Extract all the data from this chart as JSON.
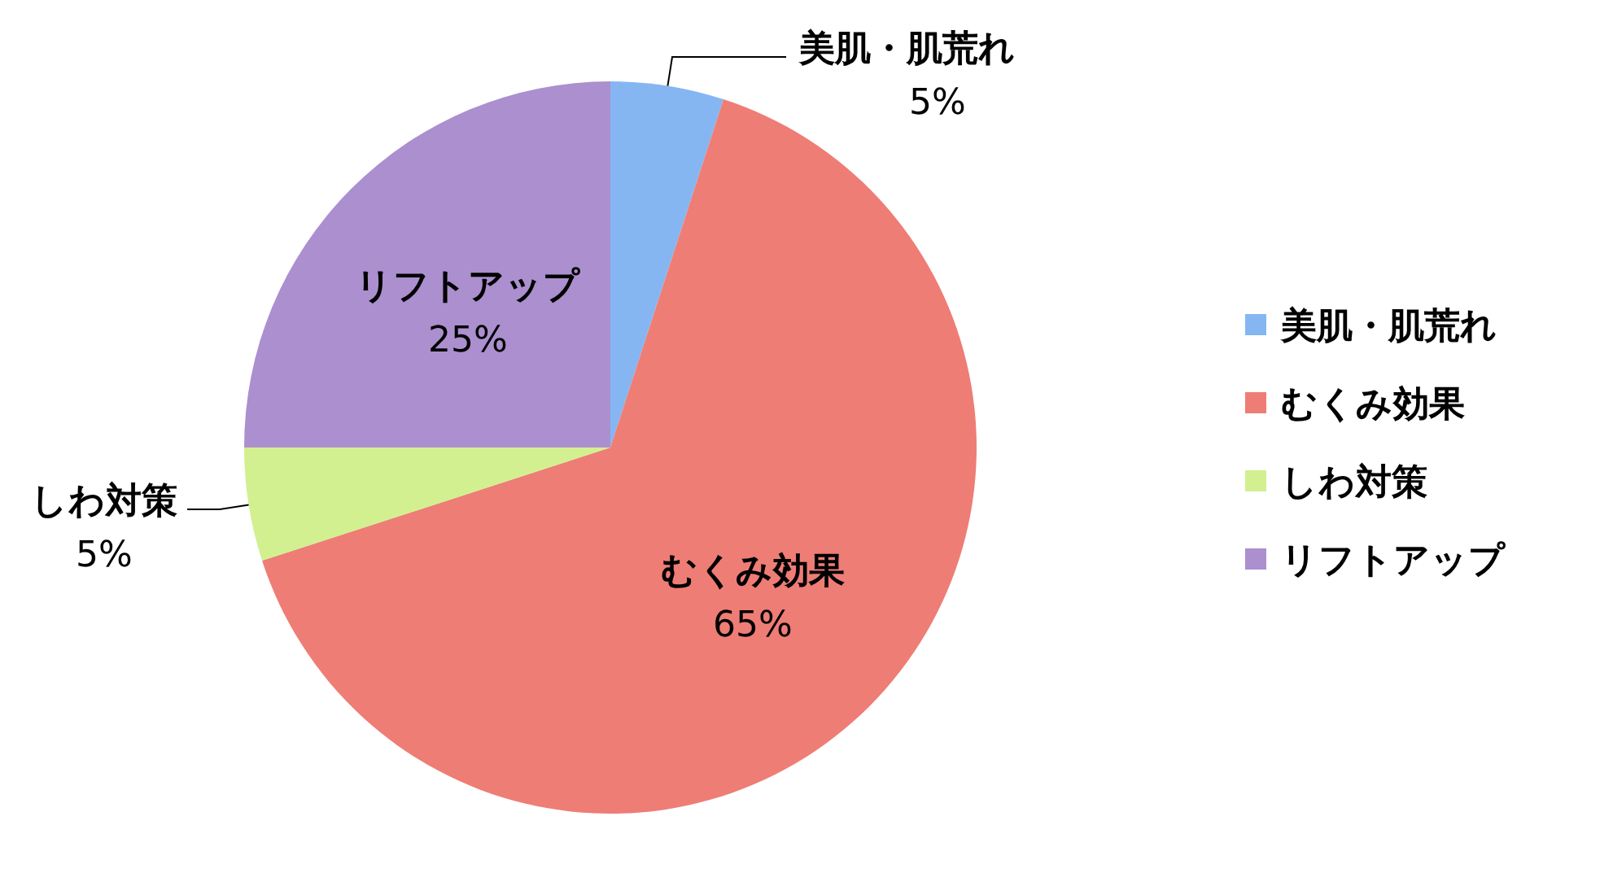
{
  "chart_data": {
    "type": "pie",
    "categories": [
      "美肌・肌荒れ",
      "むくみ効果",
      "しわ対策",
      "リフトアップ"
    ],
    "values": [
      5,
      65,
      5,
      25
    ],
    "value_labels": [
      "5%",
      "65%",
      "5%",
      "25%"
    ],
    "colors": [
      "#86b6f2",
      "#ee7d75",
      "#d2f090",
      "#ab8fce"
    ],
    "legend": "right"
  }
}
